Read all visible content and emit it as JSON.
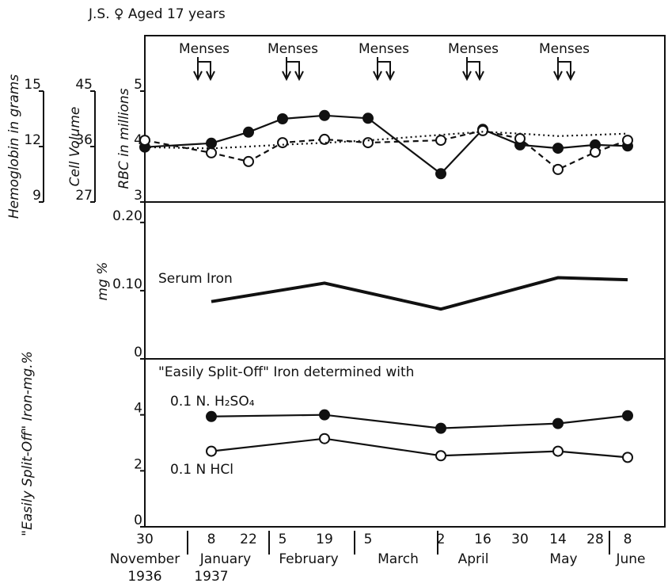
{
  "chart_data": {
    "type": "line",
    "title": "J.S. ♀ Aged 17 years",
    "categories": [
      "30",
      "8",
      "22",
      "5",
      "19",
      "5",
      "2",
      "16",
      "30",
      "14",
      "28",
      "8"
    ],
    "month_labels": [
      "November",
      "January",
      "February",
      "March",
      "April",
      "May",
      "June"
    ],
    "year_labels": [
      "1936",
      "1937"
    ],
    "annotations": [
      "Menses",
      "Menses",
      "Menses",
      "Menses",
      "Menses"
    ],
    "panels": [
      {
        "axes": [
          {
            "label": "Hemoglobin in grams",
            "lim": [
              9,
              18
            ],
            "ticks": [
              9,
              12,
              15
            ]
          },
          {
            "label": "Cell Volume",
            "lim": [
              27,
              54
            ],
            "ticks": [
              27,
              36,
              45
            ]
          },
          {
            "label": "RBC in millions",
            "lim": [
              3,
              6
            ],
            "ticks": [
              3,
              4,
              5
            ]
          }
        ],
        "series": [
          {
            "name": "RBC",
            "axis": 2,
            "marker": "filled",
            "dash": "solid",
            "color": "#111",
            "values": [
              3.99,
              4.06,
              4.26,
              4.5,
              4.56,
              4.51,
              3.51,
              4.31,
              4.03,
              3.97,
              4.03,
              4.01
            ]
          },
          {
            "name": "Hemoglobin",
            "axis": 0,
            "marker": "open",
            "dash": "dashed",
            "color": "#111",
            "values": [
              12.34,
              11.66,
              11.19,
              12.21,
              12.39,
              12.21,
              12.34,
              12.86,
              12.43,
              10.76,
              11.7,
              12.34
            ]
          },
          {
            "name": "Cell Volume",
            "axis": 1,
            "marker": "none",
            "dash": "dotted",
            "color": "#111",
            "values": [
              35.9,
              35.7,
              36.0,
              36.3,
              36.6,
              37.0,
              37.9,
              38.4,
              38.1,
              37.7,
              37.9,
              38.1
            ]
          }
        ]
      },
      {
        "axes": [
          {
            "label": "mg %",
            "lim": [
              0,
              0.23
            ],
            "ticks": [
              0,
              {
                "value": 0.1,
                "label": "0.10"
              },
              {
                "value": 0.2,
                "label": "0.20"
              }
            ]
          }
        ],
        "series": [
          {
            "name": "Serum Iron",
            "axis": 0,
            "marker": "none",
            "dash": "solid",
            "width": 4,
            "color": "#111",
            "values": [
              null,
              0.084,
              null,
              null,
              0.111,
              null,
              0.073,
              null,
              null,
              0.119,
              null,
              0.116
            ]
          }
        ]
      },
      {
        "axes": [
          {
            "label": "\"Easily Split-Off\" Iron-mg.%",
            "lim": [
              0,
              6
            ],
            "ticks": [
              0,
              2,
              4
            ]
          }
        ],
        "note": "\"Easily Split-Off\" Iron determined with",
        "series": [
          {
            "name": "0.1 N. H₂SO₄",
            "axis": 0,
            "marker": "filled",
            "dash": "solid",
            "color": "#111",
            "values": [
              null,
              3.94,
              null,
              null,
              4.0,
              null,
              3.52,
              null,
              null,
              3.69,
              null,
              3.97
            ]
          },
          {
            "name": "0.1 N HCl",
            "axis": 0,
            "marker": "open",
            "dash": "solid",
            "color": "#111",
            "values": [
              null,
              2.7,
              null,
              null,
              3.15,
              null,
              2.54,
              null,
              null,
              2.7,
              null,
              2.48
            ]
          }
        ]
      }
    ]
  }
}
